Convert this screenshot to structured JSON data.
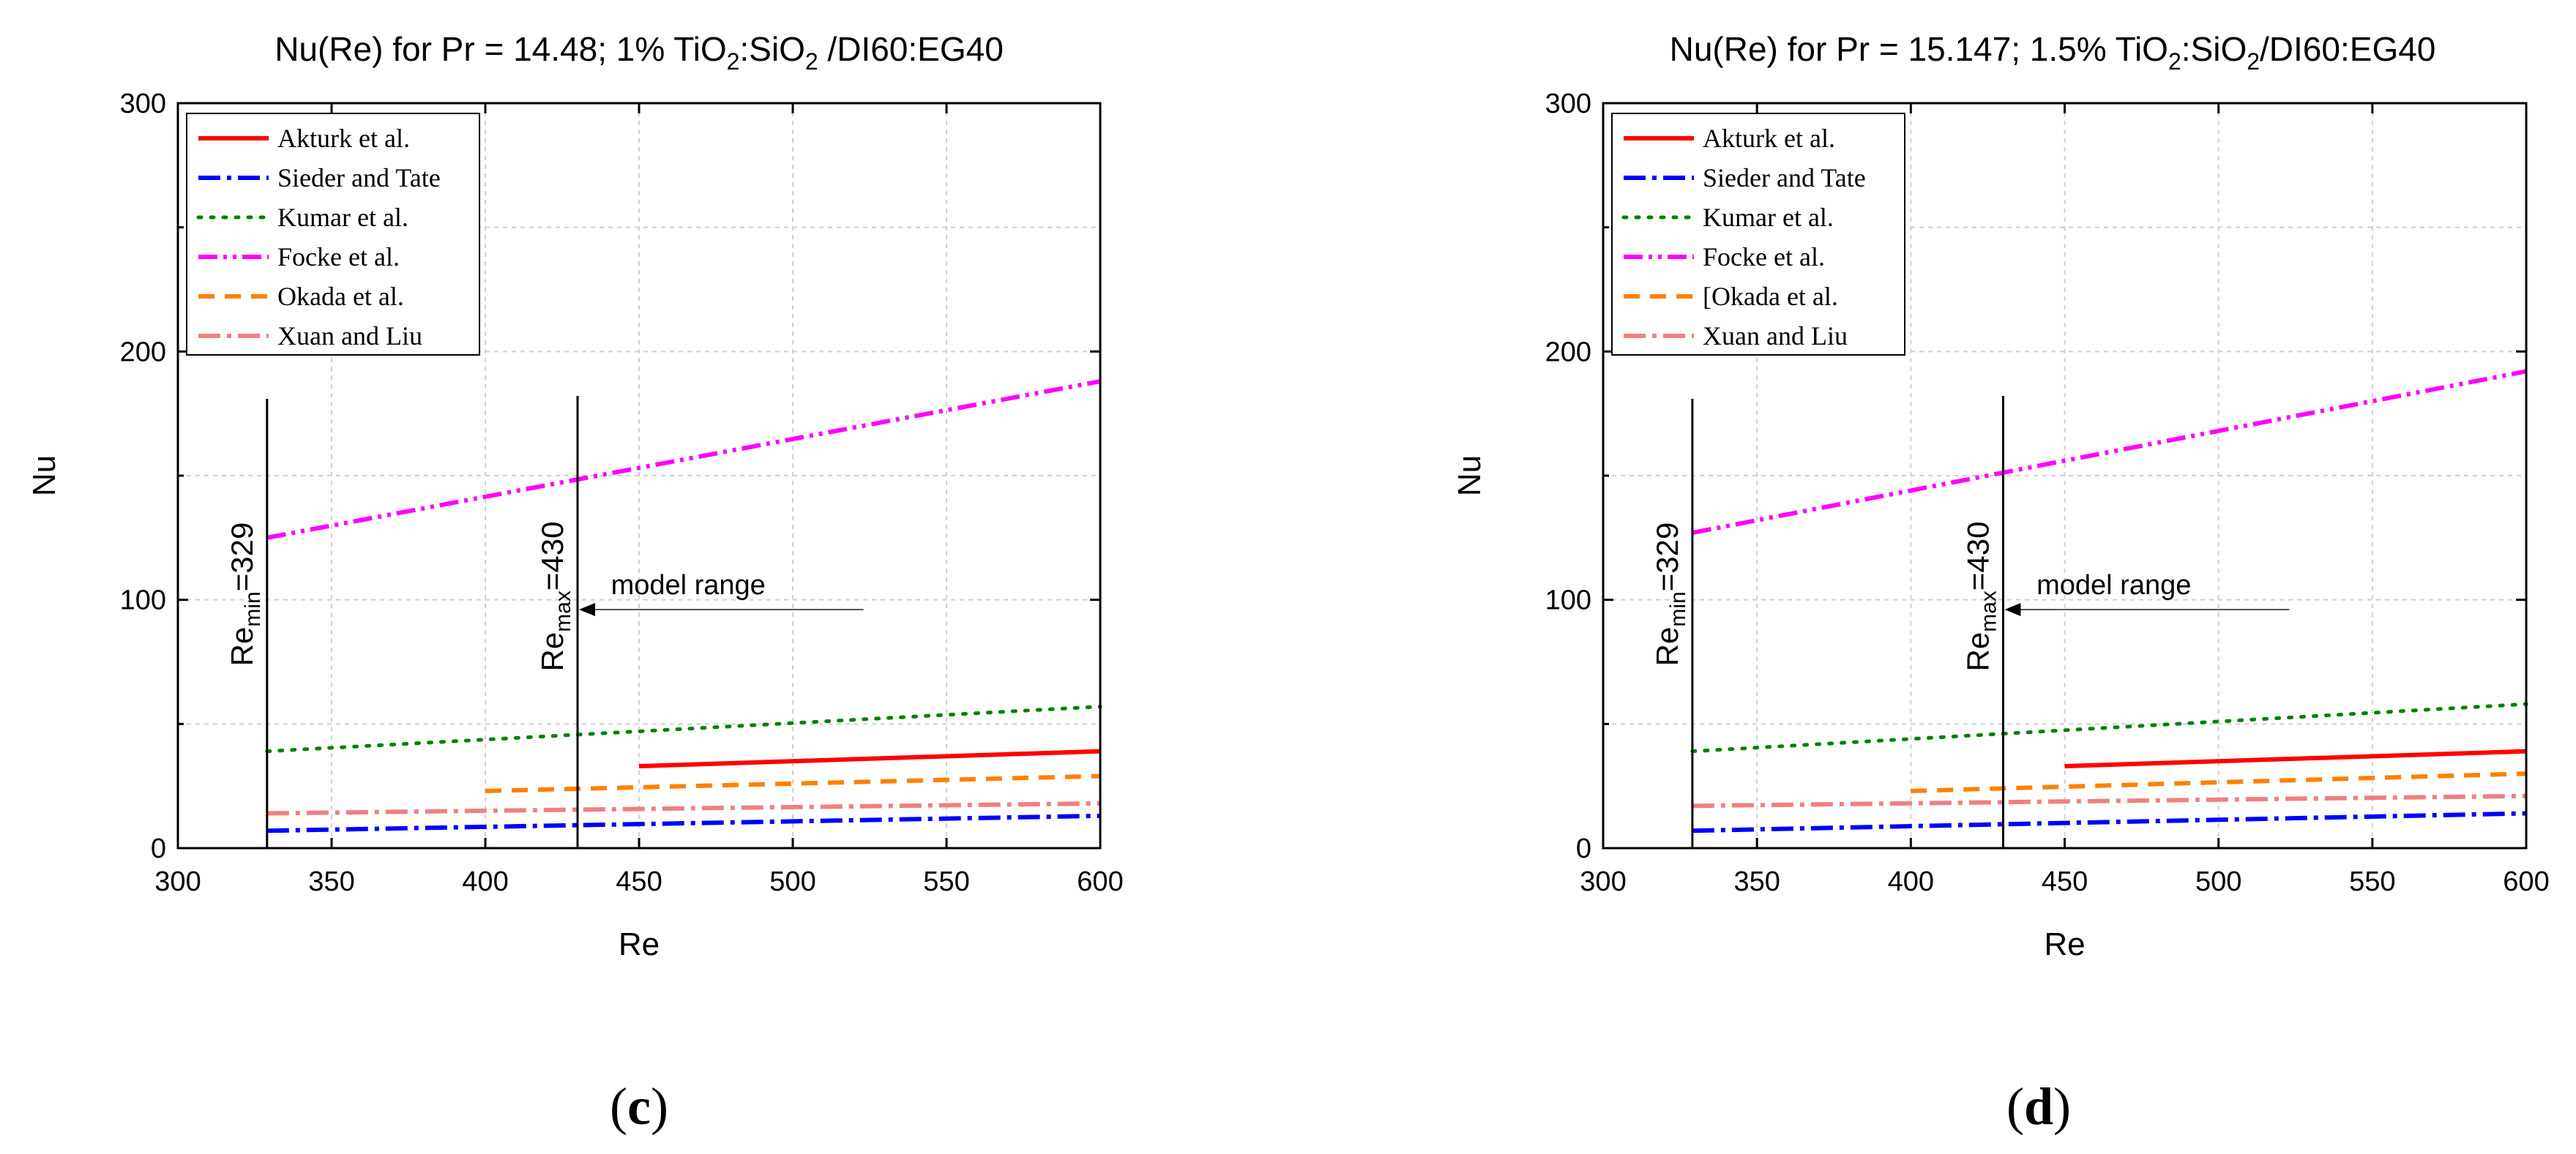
{
  "chart_data": [
    {
      "type": "line",
      "panel_label": "c",
      "title": {
        "prefix": "Nu(Re) for Pr = 14.48; 1% TiO",
        "sub1": "2",
        "mid": ":SiO",
        "sub2": "2",
        "suffix": " /DI60:EG40"
      },
      "xlabel": "Re",
      "ylabel": "Nu",
      "xlim": [
        300,
        600
      ],
      "ylim": [
        0,
        300
      ],
      "xticks": [
        300,
        350,
        400,
        450,
        500,
        550,
        600
      ],
      "yticks": [
        0,
        100,
        200,
        300
      ],
      "grid": true,
      "legend_position": "top-left",
      "series": [
        {
          "name": "Akturk et al.",
          "color": "#ff0000",
          "dash": "solid",
          "x": [
            450,
            600
          ],
          "y": [
            33,
            39
          ]
        },
        {
          "name": "Sieder and Tate",
          "color": "#0000ff",
          "dash": "dashdot",
          "x": [
            329,
            600
          ],
          "y": [
            7,
            13
          ]
        },
        {
          "name": "Kumar et al.",
          "color": "#008000",
          "dash": "dotted",
          "x": [
            329,
            600
          ],
          "y": [
            39,
            57
          ]
        },
        {
          "name": "Focke et al.",
          "color": "#ff00ff",
          "dash": "dashdotdot",
          "x": [
            329,
            600
          ],
          "y": [
            125,
            188
          ]
        },
        {
          "name": "Okada et al.",
          "color": "#ff8000",
          "dash": "dashed",
          "x": [
            400,
            600
          ],
          "y": [
            23,
            29
          ]
        },
        {
          "name": "Xuan and Liu",
          "color": "#f08080",
          "dash": "dashdot",
          "x": [
            329,
            600
          ],
          "y": [
            14,
            18
          ]
        }
      ],
      "annotations": {
        "re_min": {
          "value": 329,
          "base": "Re",
          "sub": "min",
          "eq": "=329"
        },
        "re_max": {
          "value": 430,
          "base": "Re",
          "sub": "max",
          "eq": "=430"
        },
        "range_label": "model range"
      }
    },
    {
      "type": "line",
      "panel_label": "d",
      "title": {
        "prefix": "Nu(Re) for Pr = 15.147; 1.5% TiO",
        "sub1": "2",
        "mid": ":SiO",
        "sub2": "2",
        "suffix": "/DI60:EG40"
      },
      "xlabel": "Re",
      "ylabel": "Nu",
      "xlim": [
        300,
        600
      ],
      "ylim": [
        0,
        300
      ],
      "xticks": [
        300,
        350,
        400,
        450,
        500,
        550,
        600
      ],
      "yticks": [
        0,
        100,
        200,
        300
      ],
      "grid": true,
      "legend_position": "top-left",
      "series": [
        {
          "name": "Akturk et al.",
          "color": "#ff0000",
          "dash": "solid",
          "x": [
            450,
            600
          ],
          "y": [
            33,
            39
          ]
        },
        {
          "name": "Sieder and Tate",
          "color": "#0000ff",
          "dash": "dashdot",
          "x": [
            329,
            600
          ],
          "y": [
            7,
            14
          ]
        },
        {
          "name": "Kumar et al.",
          "color": "#008000",
          "dash": "dotted",
          "x": [
            329,
            600
          ],
          "y": [
            39,
            58
          ]
        },
        {
          "name": "Focke et al.",
          "color": "#ff00ff",
          "dash": "dashdotdot",
          "x": [
            329,
            600
          ],
          "y": [
            127,
            192
          ]
        },
        {
          "name": "[Okada et al.",
          "color": "#ff8000",
          "dash": "dashed",
          "x": [
            400,
            600
          ],
          "y": [
            23,
            30
          ]
        },
        {
          "name": "Xuan and Liu",
          "color": "#f08080",
          "dash": "dashdot",
          "x": [
            329,
            600
          ],
          "y": [
            17,
            21
          ]
        }
      ],
      "annotations": {
        "re_min": {
          "value": 329,
          "base": "Re",
          "sub": "min",
          "eq": "=329"
        },
        "re_max": {
          "value": 430,
          "base": "Re",
          "sub": "max",
          "eq": "=430"
        },
        "range_label": "model range"
      }
    }
  ]
}
